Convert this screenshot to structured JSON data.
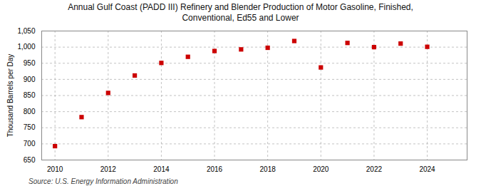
{
  "chart_data": {
    "type": "scatter",
    "title": "Annual Gulf Coast (PADD III) Refinery and Blender Production of Motor Gasoline, Finished,",
    "subtitle": "Conventional, Ed55 and Lower",
    "ylabel": "Thousand Barrels per Day",
    "caption": "Source: U.S. Energy Information Administration",
    "x": [
      2010,
      2011,
      2012,
      2013,
      2014,
      2015,
      2016,
      2017,
      2018,
      2019,
      2020,
      2021,
      2022,
      2023,
      2024
    ],
    "values": [
      693,
      783,
      858,
      912,
      951,
      970,
      988,
      993,
      998,
      1019,
      937,
      1013,
      1000,
      1011,
      1001
    ],
    "color": "#cc0000",
    "marker": "square",
    "xlim": [
      2009.5,
      2025.5
    ],
    "xticks": [
      2010,
      2012,
      2014,
      2016,
      2018,
      2020,
      2022,
      2024
    ],
    "ylim": [
      650,
      1050
    ],
    "yticks": [
      650,
      700,
      750,
      800,
      850,
      900,
      950,
      {
        "value": 1000,
        "label": "1,000"
      },
      {
        "value": 1050,
        "label": "1,050"
      }
    ],
    "grid": true
  }
}
